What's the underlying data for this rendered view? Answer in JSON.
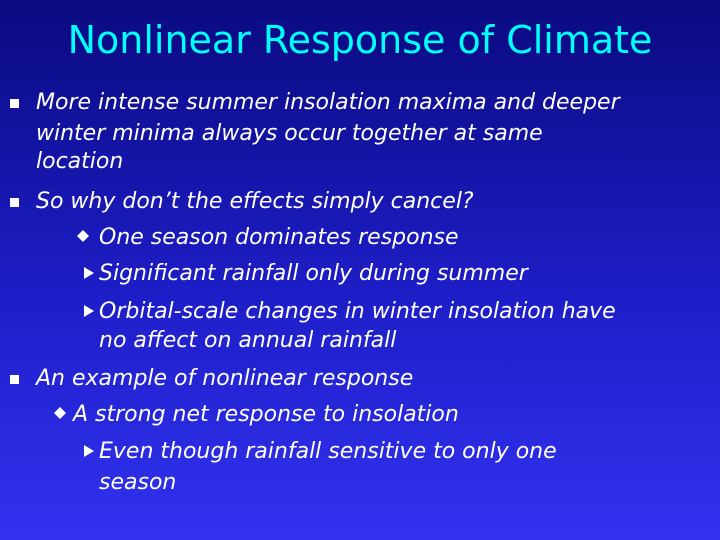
{
  "slide": {
    "title": "Nonlinear Response of Climate",
    "lines": [
      "More intense summer insolation maxima and deeper",
      "winter minima always occur together at same",
      "location",
      "So why don’t the effects simply cancel?",
      "One season dominates response",
      "Significant rainfall only during summer",
      "Orbital-scale changes in winter insolation have",
      "no affect on annual rainfall",
      "An example of nonlinear response",
      "A strong net response to insolation",
      "Even though rainfall sensitive to only one",
      "season"
    ]
  },
  "colors": {
    "title": "#00ffff",
    "text": "#ffffff",
    "background_top": "#0a0a80",
    "background_bottom": "#3232f0"
  },
  "icons": {
    "level1": "square-bullet-icon",
    "level2": "diamond-bullet-icon",
    "level3": "triangle-bullet-icon"
  }
}
